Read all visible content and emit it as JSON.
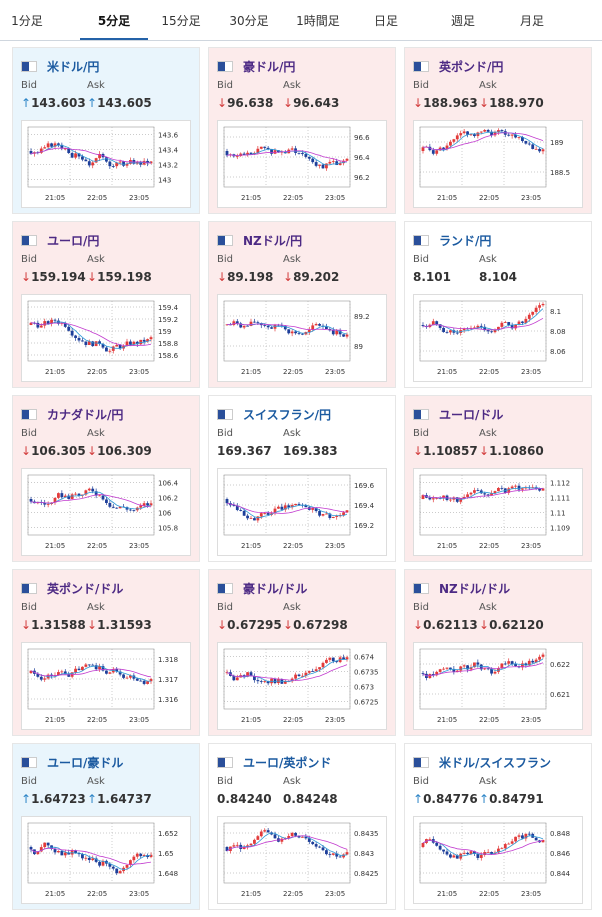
{
  "tabs": [
    {
      "label": "1分足"
    },
    {
      "label": "5分足"
    },
    {
      "label": "15分足"
    },
    {
      "label": "30分足"
    },
    {
      "label": "1時間足"
    },
    {
      "label": "日足"
    },
    {
      "label": "週足"
    },
    {
      "label": "月足"
    }
  ],
  "active_tab": "5分足",
  "cards": [
    {
      "title": "米ドル/円",
      "flag": "us-jp-flag",
      "state": "up",
      "bid": "143.603",
      "ask": "143.605",
      "bid_dir": "up",
      "ask_dir": "up",
      "x_ticks": [
        "21:05",
        "22:05",
        "23:05"
      ],
      "y_ticks": [
        "143.6",
        "143.4",
        "143.2",
        "143"
      ]
    },
    {
      "title": "豪ドル/円",
      "flag": "au-jp-flag",
      "state": "down",
      "bid": "96.638",
      "ask": "96.643",
      "bid_dir": "down",
      "ask_dir": "down",
      "x_ticks": [
        "21:05",
        "22:05",
        "23:05"
      ],
      "y_ticks": [
        "96.6",
        "96.4",
        "96.2"
      ]
    },
    {
      "title": "英ポンド/円",
      "flag": "gb-jp-flag",
      "state": "down",
      "bid": "188.963",
      "ask": "188.970",
      "bid_dir": "down",
      "ask_dir": "down",
      "x_ticks": [
        "21:05",
        "22:05",
        "23:05"
      ],
      "y_ticks": [
        "189",
        "188.5"
      ]
    },
    {
      "title": "ユーロ/円",
      "flag": "eu-jp-flag",
      "state": "down",
      "bid": "159.194",
      "ask": "159.198",
      "bid_dir": "down",
      "ask_dir": "down",
      "x_ticks": [
        "21:05",
        "22:05",
        "23:05"
      ],
      "y_ticks": [
        "159.4",
        "159.2",
        "159",
        "158.8",
        "158.6"
      ]
    },
    {
      "title": "NZドル/円",
      "flag": "nz-jp-flag",
      "state": "down",
      "bid": "89.198",
      "ask": "89.202",
      "bid_dir": "down",
      "ask_dir": "down",
      "x_ticks": [
        "21:05",
        "22:05",
        "23:05"
      ],
      "y_ticks": [
        "89.2",
        "89"
      ]
    },
    {
      "title": "ランド/円",
      "flag": "za-jp-flag",
      "state": "flat",
      "bid": "8.101",
      "ask": "8.104",
      "bid_dir": "none",
      "ask_dir": "none",
      "x_ticks": [
        "21:05",
        "22:05",
        "23:05"
      ],
      "y_ticks": [
        "8.1",
        "8.08",
        "8.06"
      ]
    },
    {
      "title": "カナダドル/円",
      "flag": "ca-jp-flag",
      "state": "down",
      "bid": "106.305",
      "ask": "106.309",
      "bid_dir": "down",
      "ask_dir": "down",
      "x_ticks": [
        "21:05",
        "22:05",
        "23:05"
      ],
      "y_ticks": [
        "106.4",
        "106.2",
        "106",
        "105.8"
      ]
    },
    {
      "title": "スイスフラン/円",
      "flag": "ch-jp-flag",
      "state": "flat",
      "bid": "169.367",
      "ask": "169.383",
      "bid_dir": "none",
      "ask_dir": "none",
      "x_ticks": [
        "21:05",
        "22:05",
        "23:05"
      ],
      "y_ticks": [
        "169.6",
        "169.4",
        "169.2"
      ]
    },
    {
      "title": "ユーロ/ドル",
      "flag": "eu-us-flag",
      "state": "down",
      "bid": "1.10857",
      "ask": "1.10860",
      "bid_dir": "down",
      "ask_dir": "down",
      "x_ticks": [
        "21:05",
        "22:05",
        "23:05"
      ],
      "y_ticks": [
        "1.112",
        "1.111",
        "1.11",
        "1.109"
      ]
    },
    {
      "title": "英ポンド/ドル",
      "flag": "gb-us-flag",
      "state": "down",
      "bid": "1.31588",
      "ask": "1.31593",
      "bid_dir": "down",
      "ask_dir": "down",
      "x_ticks": [
        "21:05",
        "22:05",
        "23:05"
      ],
      "y_ticks": [
        "1.318",
        "1.317",
        "1.316"
      ]
    },
    {
      "title": "豪ドル/ドル",
      "flag": "au-us-flag",
      "state": "down",
      "bid": "0.67295",
      "ask": "0.67298",
      "bid_dir": "down",
      "ask_dir": "down",
      "x_ticks": [
        "21:05",
        "22:05",
        "23:05"
      ],
      "y_ticks": [
        "0.674",
        "0.6735",
        "0.673",
        "0.6725"
      ]
    },
    {
      "title": "NZドル/ドル",
      "flag": "nz-us-flag",
      "state": "down",
      "bid": "0.62113",
      "ask": "0.62120",
      "bid_dir": "down",
      "ask_dir": "down",
      "x_ticks": [
        "21:05",
        "22:05",
        "23:05"
      ],
      "y_ticks": [
        "0.622",
        "0.621"
      ]
    },
    {
      "title": "ユーロ/豪ドル",
      "flag": "eu-au-flag",
      "state": "up",
      "bid": "1.64723",
      "ask": "1.64737",
      "bid_dir": "up",
      "ask_dir": "up",
      "x_ticks": [
        "21:05",
        "22:05",
        "23:05"
      ],
      "y_ticks": [
        "1.652",
        "1.65",
        "1.648"
      ]
    },
    {
      "title": "ユーロ/英ポンド",
      "flag": "eu-gb-flag",
      "state": "flat",
      "bid": "0.84240",
      "ask": "0.84248",
      "bid_dir": "none",
      "ask_dir": "none",
      "x_ticks": [
        "21:05",
        "22:05",
        "23:05"
      ],
      "y_ticks": [
        "0.8435",
        "0.843",
        "0.8425"
      ]
    },
    {
      "title": "米ドル/スイスフラン",
      "flag": "us-ch-flag",
      "state": "flat",
      "bid": "0.84776",
      "ask": "0.84791",
      "bid_dir": "up",
      "ask_dir": "up",
      "x_ticks": [
        "21:05",
        "22:05",
        "23:05"
      ],
      "y_ticks": [
        "0.848",
        "0.846",
        "0.844"
      ]
    }
  ],
  "labels": {
    "bid": "Bid",
    "ask": "Ask"
  },
  "colors": {
    "up_candle": "#e23b3b",
    "down_candle": "#1e3f9a",
    "ma_short": "#2f9ad6",
    "ma_long": "#c23ccf",
    "grid": "#bbbbbb"
  }
}
